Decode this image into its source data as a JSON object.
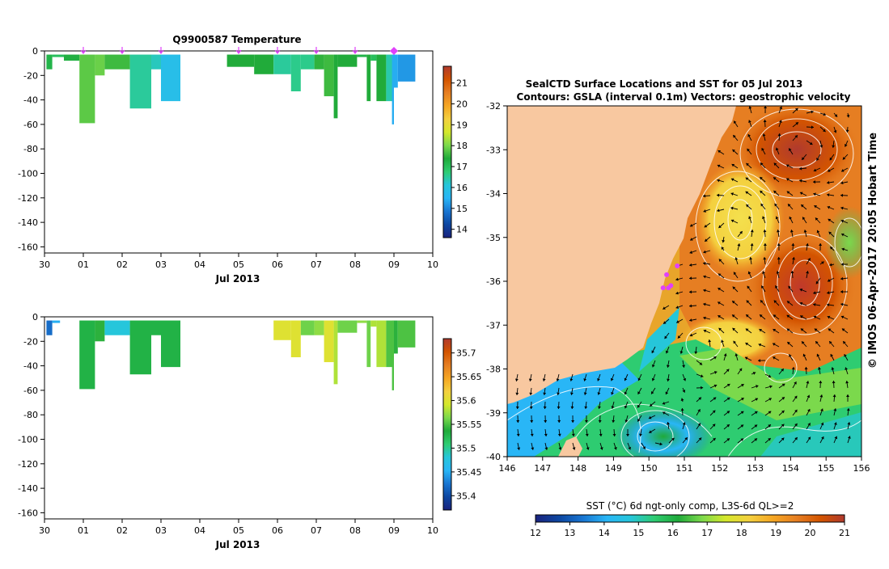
{
  "colors": {
    "temp_scale": [
      "#1a237e",
      "#0d47a1",
      "#1976d2",
      "#29b6f6",
      "#26c6da",
      "#2ecc71",
      "#1faa3a",
      "#7bd94c",
      "#d4e82c",
      "#f4d03f",
      "#f5a623",
      "#e67e22",
      "#d35400",
      "#b03a2e"
    ],
    "land": "#f8c8a0",
    "marker": "#e040fb"
  },
  "chart_data": [
    {
      "type": "heatmap",
      "title": "Q9900587  Temperature",
      "xlabel": "Jul 2013",
      "ylabel": "",
      "xticks": [
        "30",
        "01",
        "02",
        "03",
        "04",
        "05",
        "06",
        "07",
        "08",
        "09",
        "10"
      ],
      "yticks": [
        "0",
        "-20",
        "-40",
        "-60",
        "-80",
        "-100",
        "-120",
        "-140",
        "-160"
      ],
      "xlim": [
        0,
        10
      ],
      "ylim": [
        -165,
        0
      ],
      "profile_markers_day": [
        1,
        2,
        3,
        5,
        6,
        7,
        8
      ],
      "highlight_marker_day": 9,
      "colorbar": {
        "ticks": [
          "14",
          "15",
          "16",
          "17",
          "18",
          "19",
          "20",
          "21"
        ],
        "range": [
          13.6,
          21.8
        ]
      },
      "profiles": [
        {
          "x0": 0.05,
          "x1": 0.2,
          "depth": 15,
          "value": 17.2
        },
        {
          "x0": 0.2,
          "x1": 0.5,
          "depth": 5,
          "value": 17.0
        },
        {
          "x0": 0.5,
          "x1": 0.9,
          "depth": 8,
          "value": 17.3
        },
        {
          "x0": 0.9,
          "x1": 1.3,
          "depth": 59,
          "value": 17.8
        },
        {
          "x0": 1.3,
          "x1": 1.55,
          "depth": 20,
          "value": 17.9
        },
        {
          "x0": 1.55,
          "x1": 2.2,
          "depth": 15,
          "value": 17.6
        },
        {
          "x0": 2.2,
          "x1": 2.75,
          "depth": 47,
          "value": 16.5
        },
        {
          "x0": 2.75,
          "x1": 3.0,
          "depth": 15,
          "value": 16.3
        },
        {
          "x0": 3.0,
          "x1": 3.5,
          "depth": 41,
          "value": 15.8
        },
        {
          "x0": 4.7,
          "x1": 5.4,
          "depth": 13,
          "value": 17.4
        },
        {
          "x0": 5.4,
          "x1": 5.9,
          "depth": 19,
          "value": 17.4
        },
        {
          "x0": 5.9,
          "x1": 6.35,
          "depth": 19,
          "value": 16.5
        },
        {
          "x0": 6.35,
          "x1": 6.6,
          "depth": 33,
          "value": 16.6
        },
        {
          "x0": 6.6,
          "x1": 6.95,
          "depth": 15,
          "value": 16.6
        },
        {
          "x0": 6.95,
          "x1": 7.2,
          "depth": 15,
          "value": 17.5
        },
        {
          "x0": 7.2,
          "x1": 7.45,
          "depth": 37,
          "value": 17.6
        },
        {
          "x0": 7.45,
          "x1": 7.55,
          "depth": 55,
          "value": 17.4
        },
        {
          "x0": 7.55,
          "x1": 8.05,
          "depth": 13,
          "value": 17.4
        },
        {
          "x0": 8.05,
          "x1": 8.3,
          "depth": 5,
          "value": 17.2
        },
        {
          "x0": 8.3,
          "x1": 8.4,
          "depth": 41,
          "value": 17.4
        },
        {
          "x0": 8.4,
          "x1": 8.55,
          "depth": 8,
          "value": 17.0
        },
        {
          "x0": 8.55,
          "x1": 8.8,
          "depth": 41,
          "value": 17.4
        },
        {
          "x0": 8.8,
          "x1": 9.0,
          "depth": 41,
          "value": 16.4
        },
        {
          "x0": 8.95,
          "x1": 9.0,
          "depth": 60,
          "value": 15.4
        },
        {
          "x0": 9.0,
          "x1": 9.1,
          "depth": 30,
          "value": 15.4
        },
        {
          "x0": 9.1,
          "x1": 9.55,
          "depth": 25,
          "value": 15.2
        }
      ]
    },
    {
      "type": "heatmap",
      "title": "",
      "xlabel": "Jul 2013",
      "ylabel": "",
      "xticks": [
        "30",
        "01",
        "02",
        "03",
        "04",
        "05",
        "06",
        "07",
        "08",
        "09",
        "10"
      ],
      "yticks": [
        "0",
        "-20",
        "-40",
        "-60",
        "-80",
        "-100",
        "-120",
        "-140",
        "-160"
      ],
      "xlim": [
        0,
        10
      ],
      "ylim": [
        -165,
        0
      ],
      "colorbar": {
        "ticks": [
          "35.4",
          "35.45",
          "35.5",
          "35.55",
          "35.6",
          "35.65",
          "35.7"
        ],
        "range": [
          35.37,
          35.73
        ]
      },
      "profiles": [
        {
          "x0": 0.05,
          "x1": 0.2,
          "depth": 15,
          "value": 35.42
        },
        {
          "x0": 0.2,
          "x1": 0.4,
          "depth": 5,
          "value": 35.45
        },
        {
          "x0": 0.9,
          "x1": 1.3,
          "depth": 59,
          "value": 35.53
        },
        {
          "x0": 1.3,
          "x1": 1.55,
          "depth": 20,
          "value": 35.54
        },
        {
          "x0": 1.55,
          "x1": 2.2,
          "depth": 15,
          "value": 35.48
        },
        {
          "x0": 2.2,
          "x1": 2.75,
          "depth": 47,
          "value": 35.53
        },
        {
          "x0": 2.75,
          "x1": 3.0,
          "depth": 15,
          "value": 35.53
        },
        {
          "x0": 3.0,
          "x1": 3.5,
          "depth": 41,
          "value": 35.53
        },
        {
          "x0": 5.9,
          "x1": 6.35,
          "depth": 19,
          "value": 35.6
        },
        {
          "x0": 6.35,
          "x1": 6.6,
          "depth": 33,
          "value": 35.6
        },
        {
          "x0": 6.6,
          "x1": 6.95,
          "depth": 15,
          "value": 35.56
        },
        {
          "x0": 6.95,
          "x1": 7.2,
          "depth": 15,
          "value": 35.57
        },
        {
          "x0": 7.2,
          "x1": 7.45,
          "depth": 37,
          "value": 35.6
        },
        {
          "x0": 7.45,
          "x1": 7.55,
          "depth": 55,
          "value": 35.58
        },
        {
          "x0": 7.55,
          "x1": 8.05,
          "depth": 13,
          "value": 35.56
        },
        {
          "x0": 8.05,
          "x1": 8.3,
          "depth": 5,
          "value": 35.57
        },
        {
          "x0": 8.3,
          "x1": 8.4,
          "depth": 41,
          "value": 35.56
        },
        {
          "x0": 8.4,
          "x1": 8.55,
          "depth": 8,
          "value": 35.58
        },
        {
          "x0": 8.55,
          "x1": 8.8,
          "depth": 41,
          "value": 35.58
        },
        {
          "x0": 8.8,
          "x1": 9.0,
          "depth": 41,
          "value": 35.55
        },
        {
          "x0": 8.95,
          "x1": 9.0,
          "depth": 60,
          "value": 35.55
        },
        {
          "x0": 9.0,
          "x1": 9.1,
          "depth": 30,
          "value": 35.54
        },
        {
          "x0": 9.1,
          "x1": 9.55,
          "depth": 25,
          "value": 35.55
        }
      ]
    },
    {
      "type": "heatmap",
      "title": "SealCTD Surface Locations and SST for 05 Jul 2013",
      "subtitle": "Contours: GSLA (interval 0.1m) Vectors: geostrophic velocity",
      "xlabel": "",
      "ylabel": "",
      "xticks": [
        "146",
        "147",
        "148",
        "149",
        "150",
        "151",
        "152",
        "153",
        "154",
        "155",
        "156"
      ],
      "yticks": [
        "-32",
        "-33",
        "-34",
        "-35",
        "-36",
        "-37",
        "-38",
        "-39",
        "-40"
      ],
      "xlim": [
        146,
        156
      ],
      "ylim": [
        -40,
        -32
      ],
      "colorbar": {
        "label": "SST (°C) 6d ngt-only comp, L3S-6d QL>=2",
        "ticks": [
          "12",
          "13",
          "14",
          "15",
          "16",
          "17",
          "18",
          "19",
          "20",
          "21"
        ],
        "range": [
          12,
          21
        ]
      },
      "seal_locations": [
        {
          "lon": 150.5,
          "lat": -35.85
        },
        {
          "lon": 150.8,
          "lat": -35.65
        },
        {
          "lon": 150.4,
          "lat": -36.15
        },
        {
          "lon": 150.55,
          "lat": -36.15
        },
        {
          "lon": 150.62,
          "lat": -36.1
        }
      ],
      "credit": "© IMOS 06-Apr-2017 20:05 Hobart Time"
    }
  ]
}
